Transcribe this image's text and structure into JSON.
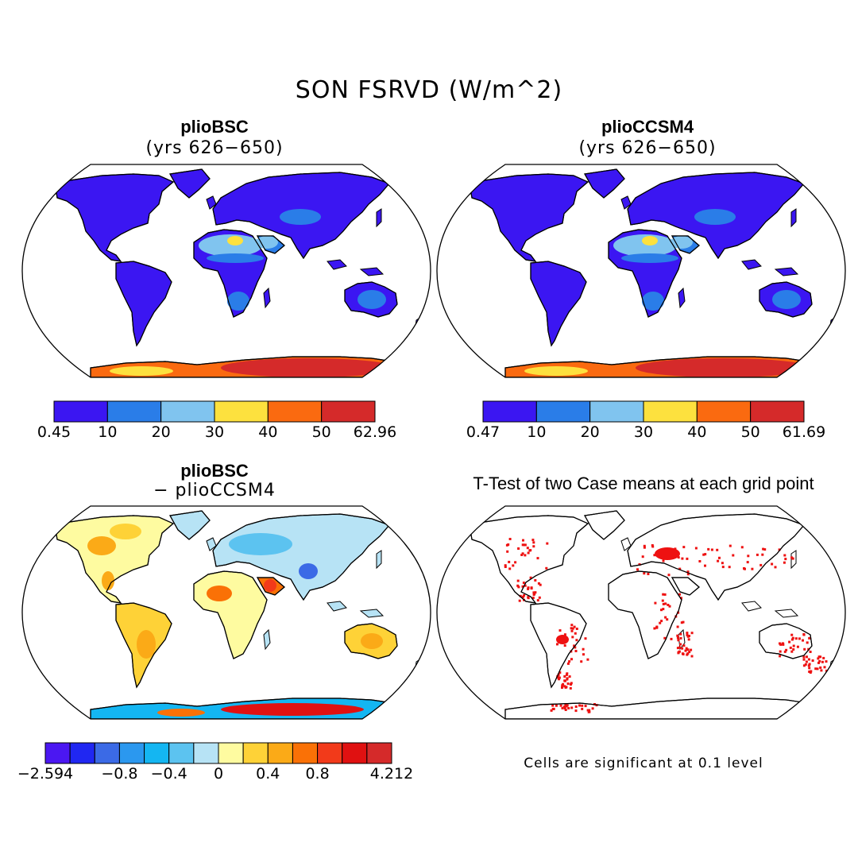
{
  "title": "SON FSRVD (W/m^2)",
  "panels": [
    {
      "id": "a",
      "title": "plioBSC",
      "subtitle": "(yrs 626−650)",
      "colorbar": {
        "labels": [
          "0.45",
          "10",
          "20",
          "30",
          "40",
          "50",
          "62.96"
        ]
      }
    },
    {
      "id": "b",
      "title": "plioCCSM4",
      "subtitle": "(yrs 626−650)",
      "colorbar": {
        "labels": [
          "0.47",
          "10",
          "20",
          "30",
          "40",
          "50",
          "61.69"
        ]
      }
    },
    {
      "id": "c",
      "title": "plioBSC",
      "subtitle": "− plioCCSM4",
      "colorbar": {
        "labels": [
          "−2.594",
          "−0.8",
          "−0.4",
          "0",
          "0.4",
          "0.8",
          "4.212"
        ]
      }
    },
    {
      "id": "d",
      "title": "T-Test of two Case means at each grid point",
      "note": "Cells are significant at 0.1 level"
    }
  ],
  "colors": {
    "seq": [
      "#3b16f2",
      "#2a7de8",
      "#80c4ef",
      "#fde13e",
      "#fa6a10",
      "#d52a2a"
    ],
    "div": [
      "#4b17f2",
      "#2027f2",
      "#3b6ae6",
      "#2b98ef",
      "#14b6f2",
      "#5cc3f0",
      "#b7e3f5",
      "#fefba0",
      "#fed237",
      "#fbaa17",
      "#fa7106",
      "#f23a1a",
      "#e01111",
      "#d52a2a"
    ],
    "signif": "#ee1111"
  }
}
